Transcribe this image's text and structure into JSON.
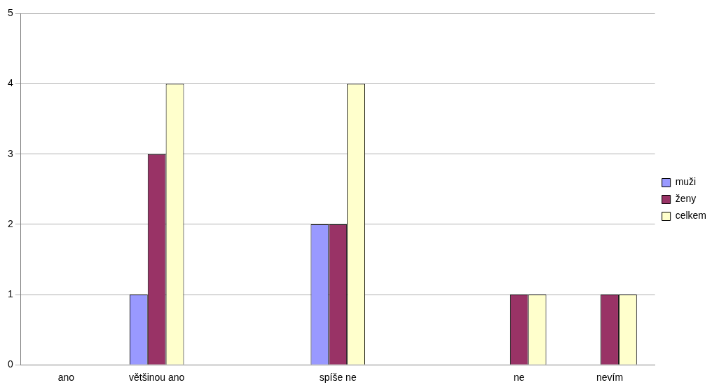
{
  "chart_data": {
    "type": "bar",
    "categories": [
      "ano",
      "většinou ano",
      null,
      "spíše ne",
      null,
      "ne",
      "nevím"
    ],
    "series": [
      {
        "name": "muži",
        "color": "#9999ff",
        "values": [
          0,
          1,
          null,
          2,
          null,
          0,
          0
        ]
      },
      {
        "name": "ženy",
        "color": "#993366",
        "values": [
          0,
          3,
          null,
          2,
          null,
          1,
          1
        ]
      },
      {
        "name": "celkem",
        "color": "#ffffcc",
        "values": [
          0,
          4,
          null,
          4,
          null,
          1,
          1
        ]
      }
    ],
    "ylim": [
      0,
      5
    ],
    "yticks": [
      0,
      1,
      2,
      3,
      4,
      5
    ],
    "grid": "y",
    "legend": "right"
  }
}
